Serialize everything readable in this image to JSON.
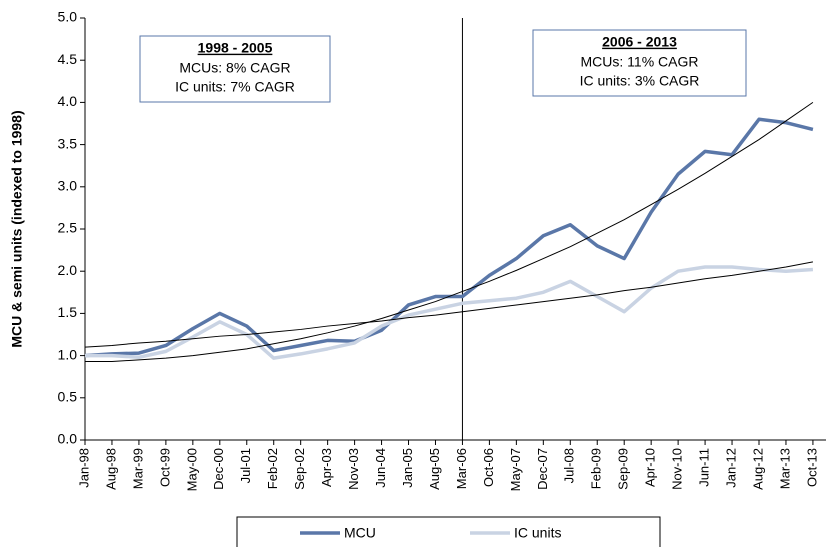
{
  "chart_data": {
    "type": "line",
    "y_label": "MCU & semi units (indexed to 1998)",
    "categories": [
      "Jan-98",
      "Aug-98",
      "Mar-99",
      "Oct-99",
      "May-00",
      "Dec-00",
      "Jul-01",
      "Feb-02",
      "Sep-02",
      "Apr-03",
      "Nov-03",
      "Jun-04",
      "Jan-05",
      "Aug-05",
      "Mar-06",
      "Oct-06",
      "May-07",
      "Dec-07",
      "Jul-08",
      "Feb-09",
      "Sep-09",
      "Apr-10",
      "Nov-10",
      "Jun-11",
      "Jan-12",
      "Aug-12",
      "Mar-13",
      "Oct-13"
    ],
    "series": [
      {
        "name": "MCU",
        "color": "#5a77a8",
        "values": [
          1.0,
          1.02,
          1.03,
          1.12,
          1.32,
          1.5,
          1.35,
          1.06,
          1.12,
          1.18,
          1.17,
          1.3,
          1.6,
          1.7,
          1.7,
          1.95,
          2.15,
          2.42,
          2.55,
          2.3,
          2.15,
          2.7,
          3.15,
          3.42,
          3.38,
          3.8,
          3.76,
          3.68
        ]
      },
      {
        "name": "IC units",
        "color": "#c9d3e3",
        "values": [
          1.0,
          1.0,
          0.98,
          1.05,
          1.22,
          1.4,
          1.25,
          0.97,
          1.02,
          1.08,
          1.15,
          1.35,
          1.48,
          1.55,
          1.62,
          1.65,
          1.68,
          1.75,
          1.88,
          1.7,
          1.52,
          1.8,
          2.0,
          2.05,
          2.05,
          2.02,
          2.0,
          2.02
        ]
      }
    ],
    "trendlines": [
      {
        "color": "#000000",
        "values": [
          0.93,
          0.93,
          0.95,
          0.97,
          1.0,
          1.04,
          1.08,
          1.14,
          1.2,
          1.27,
          1.35,
          1.44,
          1.54,
          1.64,
          1.76,
          1.88,
          2.01,
          2.15,
          2.29,
          2.45,
          2.61,
          2.79,
          2.97,
          3.16,
          3.36,
          3.56,
          3.78,
          4.0
        ]
      },
      {
        "color": "#000000",
        "values": [
          1.1,
          1.12,
          1.15,
          1.17,
          1.2,
          1.23,
          1.25,
          1.28,
          1.31,
          1.35,
          1.38,
          1.41,
          1.45,
          1.48,
          1.52,
          1.56,
          1.6,
          1.64,
          1.68,
          1.72,
          1.77,
          1.81,
          1.86,
          1.91,
          1.95,
          2.0,
          2.05,
          2.11
        ]
      }
    ],
    "divider": "Mar-06",
    "ylim": [
      0,
      5
    ],
    "yticks": [
      {
        "value": 0,
        "label": "0.0"
      },
      {
        "value": 0.5,
        "label": "0.5"
      },
      {
        "value": 1,
        "label": "1.0"
      },
      {
        "value": 1.5,
        "label": "1.5"
      },
      {
        "value": 2,
        "label": "2.0"
      },
      {
        "value": 2.5,
        "label": "2.5"
      },
      {
        "value": 3,
        "label": "3.0"
      },
      {
        "value": 3.5,
        "label": "3.5"
      },
      {
        "value": 4,
        "label": "4.0"
      },
      {
        "value": 4.5,
        "label": "4.5"
      },
      {
        "value": 5,
        "label": "5.0"
      }
    ],
    "grid": false,
    "legend": "bottom",
    "annotations": [
      {
        "title": "1998 - 2005",
        "lines": [
          "MCUs: 8% CAGR",
          "IC units: 7% CAGR"
        ]
      },
      {
        "title": "2006 - 2013",
        "lines": [
          "MCUs: 11% CAGR",
          "IC units: 3% CAGR"
        ]
      }
    ]
  }
}
